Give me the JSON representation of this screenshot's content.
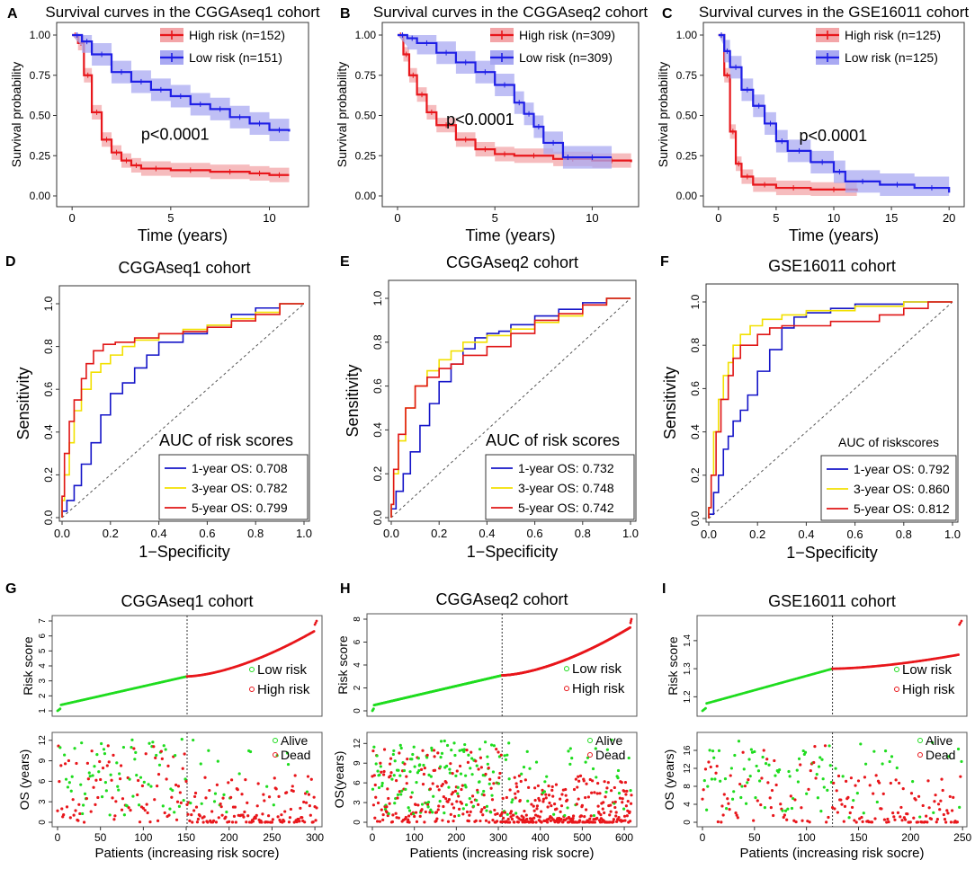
{
  "colors": {
    "high": "#e8161b",
    "low": "#1f1fe6",
    "one": "#1414c8",
    "three": "#f2e000",
    "five": "#e01616",
    "green": "#1fdc1f",
    "red": "#e8161b",
    "diag": "#555555"
  },
  "km": [
    {
      "letter": "A",
      "title": "Survival curves in the CGGAseq1 cohort",
      "xlabel": "Time (years)",
      "ylabel": "Survival probability",
      "pvalue": "p<0.0001",
      "legend": [
        "High risk (n=152)",
        "Low risk (n=151)"
      ],
      "xlim": [
        -0.6,
        11.8
      ],
      "xticks": [
        0,
        5,
        10
      ],
      "ylim": [
        0,
        1
      ],
      "yticks": [
        "0.00",
        "0.25",
        "0.50",
        "0.75",
        "1.00"
      ],
      "high": [
        [
          0,
          1
        ],
        [
          0.3,
          0.95
        ],
        [
          0.6,
          0.75
        ],
        [
          1,
          0.52
        ],
        [
          1.5,
          0.35
        ],
        [
          2,
          0.27
        ],
        [
          2.5,
          0.22
        ],
        [
          3,
          0.19
        ],
        [
          3.5,
          0.17
        ],
        [
          5,
          0.16
        ],
        [
          7,
          0.15
        ],
        [
          9,
          0.14
        ],
        [
          10,
          0.13
        ],
        [
          11,
          0.13
        ]
      ],
      "low": [
        [
          0,
          1
        ],
        [
          0.5,
          0.96
        ],
        [
          1,
          0.88
        ],
        [
          2,
          0.77
        ],
        [
          3,
          0.71
        ],
        [
          4,
          0.66
        ],
        [
          5,
          0.62
        ],
        [
          6,
          0.57
        ],
        [
          7,
          0.54
        ],
        [
          8,
          0.49
        ],
        [
          9,
          0.45
        ],
        [
          10,
          0.41
        ],
        [
          11,
          0.4
        ]
      ]
    },
    {
      "letter": "B",
      "title": "Survival curves in the CGGAseq2 cohort",
      "xlabel": "Time (years)",
      "ylabel": "Survival probability",
      "pvalue": "p<0.0001",
      "legend": [
        "High risk (n=309)",
        "Low risk (n=309)"
      ],
      "xlim": [
        -0.6,
        12.2
      ],
      "xticks": [
        0,
        5,
        10
      ],
      "ylim": [
        0,
        1
      ],
      "yticks": [
        "0.00",
        "0.25",
        "0.50",
        "0.75",
        "1.00"
      ],
      "high": [
        [
          0,
          1
        ],
        [
          0.3,
          0.88
        ],
        [
          0.6,
          0.75
        ],
        [
          1,
          0.63
        ],
        [
          1.5,
          0.52
        ],
        [
          2,
          0.44
        ],
        [
          3,
          0.35
        ],
        [
          4,
          0.29
        ],
        [
          5,
          0.26
        ],
        [
          6,
          0.25
        ],
        [
          8,
          0.23
        ],
        [
          10,
          0.22
        ],
        [
          12,
          0.21
        ]
      ],
      "low": [
        [
          0,
          1
        ],
        [
          0.5,
          0.98
        ],
        [
          1,
          0.95
        ],
        [
          2,
          0.89
        ],
        [
          3,
          0.83
        ],
        [
          4,
          0.77
        ],
        [
          5,
          0.69
        ],
        [
          6,
          0.58
        ],
        [
          6.5,
          0.51
        ],
        [
          7,
          0.43
        ],
        [
          7.5,
          0.33
        ],
        [
          8.5,
          0.24
        ],
        [
          9,
          0.24
        ],
        [
          11,
          0.24
        ]
      ]
    },
    {
      "letter": "C",
      "title": "Survival curves in the GSE16011 cohort",
      "xlabel": "Time (years)",
      "ylabel": "Survival probability",
      "pvalue": "p<0.0001",
      "legend": [
        "High risk (n=125)",
        "Low risk (n=125)"
      ],
      "xlim": [
        -1,
        21
      ],
      "xticks": [
        0,
        5,
        10,
        15,
        20
      ],
      "ylim": [
        0,
        1
      ],
      "yticks": [
        "0.00",
        "0.25",
        "0.50",
        "0.75",
        "1.00"
      ],
      "high": [
        [
          0,
          1
        ],
        [
          0.5,
          0.75
        ],
        [
          1,
          0.4
        ],
        [
          1.5,
          0.2
        ],
        [
          2,
          0.12
        ],
        [
          3,
          0.07
        ],
        [
          5,
          0.05
        ],
        [
          8,
          0.04
        ],
        [
          12,
          0.03
        ]
      ],
      "low": [
        [
          0,
          1
        ],
        [
          0.5,
          0.9
        ],
        [
          1,
          0.8
        ],
        [
          2,
          0.66
        ],
        [
          3,
          0.56
        ],
        [
          4,
          0.45
        ],
        [
          5,
          0.34
        ],
        [
          6,
          0.28
        ],
        [
          8,
          0.21
        ],
        [
          10,
          0.15
        ],
        [
          11,
          0.09
        ],
        [
          14,
          0.07
        ],
        [
          17,
          0.05
        ],
        [
          20,
          0.02
        ]
      ]
    }
  ],
  "roc": [
    {
      "letter": "D",
      "title": "CGGAseq1 cohort",
      "xlabel": "1−Specificity",
      "ylabel": "Sensitivity",
      "legend_title": "AUC of risk scores",
      "legend": [
        "1-year OS:  0.708",
        "3-year OS:  0.782",
        "5-year OS:  0.799"
      ],
      "ticks": [
        "0.0",
        "0.2",
        "0.4",
        "0.6",
        "0.8",
        "1.0"
      ],
      "one": [
        [
          0,
          0
        ],
        [
          0.02,
          0.03
        ],
        [
          0.05,
          0.08
        ],
        [
          0.08,
          0.15
        ],
        [
          0.12,
          0.25
        ],
        [
          0.16,
          0.35
        ],
        [
          0.2,
          0.48
        ],
        [
          0.25,
          0.58
        ],
        [
          0.3,
          0.63
        ],
        [
          0.35,
          0.7
        ],
        [
          0.4,
          0.76
        ],
        [
          0.5,
          0.82
        ],
        [
          0.6,
          0.86
        ],
        [
          0.7,
          0.9
        ],
        [
          0.8,
          0.95
        ],
        [
          0.9,
          0.98
        ],
        [
          1,
          1
        ]
      ],
      "three": [
        [
          0,
          0
        ],
        [
          0.01,
          0.08
        ],
        [
          0.03,
          0.2
        ],
        [
          0.05,
          0.35
        ],
        [
          0.08,
          0.5
        ],
        [
          0.12,
          0.6
        ],
        [
          0.16,
          0.68
        ],
        [
          0.2,
          0.72
        ],
        [
          0.25,
          0.76
        ],
        [
          0.3,
          0.8
        ],
        [
          0.4,
          0.83
        ],
        [
          0.5,
          0.86
        ],
        [
          0.6,
          0.88
        ],
        [
          0.7,
          0.9
        ],
        [
          0.8,
          0.93
        ],
        [
          0.9,
          0.96
        ],
        [
          1,
          1
        ]
      ],
      "five": [
        [
          0,
          0
        ],
        [
          0.01,
          0.1
        ],
        [
          0.03,
          0.3
        ],
        [
          0.05,
          0.45
        ],
        [
          0.08,
          0.55
        ],
        [
          0.1,
          0.65
        ],
        [
          0.13,
          0.72
        ],
        [
          0.17,
          0.78
        ],
        [
          0.22,
          0.81
        ],
        [
          0.3,
          0.82
        ],
        [
          0.4,
          0.84
        ],
        [
          0.5,
          0.86
        ],
        [
          0.6,
          0.87
        ],
        [
          0.7,
          0.89
        ],
        [
          0.8,
          0.92
        ],
        [
          0.9,
          0.95
        ],
        [
          1,
          1
        ]
      ]
    },
    {
      "letter": "E",
      "title": "CGGAseq2 cohort",
      "xlabel": "1−Specificity",
      "ylabel": "Sensitivity",
      "legend_title": "AUC of risk scores",
      "legend": [
        "1-year OS:  0.732",
        "3-year OS:  0.748",
        "5-year OS:  0.742"
      ],
      "ticks": [
        "0.0",
        "0.2",
        "0.4",
        "0.6",
        "0.8",
        "1.0"
      ],
      "one": [
        [
          0,
          0
        ],
        [
          0.02,
          0.04
        ],
        [
          0.05,
          0.12
        ],
        [
          0.08,
          0.2
        ],
        [
          0.12,
          0.3
        ],
        [
          0.16,
          0.42
        ],
        [
          0.2,
          0.52
        ],
        [
          0.25,
          0.62
        ],
        [
          0.3,
          0.7
        ],
        [
          0.35,
          0.77
        ],
        [
          0.4,
          0.82
        ],
        [
          0.45,
          0.84
        ],
        [
          0.5,
          0.85
        ],
        [
          0.6,
          0.88
        ],
        [
          0.7,
          0.92
        ],
        [
          0.8,
          0.95
        ],
        [
          0.9,
          0.98
        ],
        [
          1,
          1
        ]
      ],
      "three": [
        [
          0,
          0
        ],
        [
          0.01,
          0.06
        ],
        [
          0.03,
          0.2
        ],
        [
          0.06,
          0.35
        ],
        [
          0.1,
          0.5
        ],
        [
          0.15,
          0.6
        ],
        [
          0.2,
          0.67
        ],
        [
          0.25,
          0.72
        ],
        [
          0.3,
          0.76
        ],
        [
          0.4,
          0.8
        ],
        [
          0.5,
          0.83
        ],
        [
          0.6,
          0.86
        ],
        [
          0.7,
          0.89
        ],
        [
          0.8,
          0.92
        ],
        [
          0.9,
          0.97
        ],
        [
          1,
          1
        ]
      ],
      "five": [
        [
          0,
          0
        ],
        [
          0.01,
          0.06
        ],
        [
          0.03,
          0.22
        ],
        [
          0.06,
          0.38
        ],
        [
          0.1,
          0.5
        ],
        [
          0.15,
          0.6
        ],
        [
          0.2,
          0.64
        ],
        [
          0.25,
          0.68
        ],
        [
          0.3,
          0.7
        ],
        [
          0.4,
          0.74
        ],
        [
          0.5,
          0.78
        ],
        [
          0.6,
          0.84
        ],
        [
          0.7,
          0.9
        ],
        [
          0.8,
          0.93
        ],
        [
          0.9,
          0.97
        ],
        [
          1,
          1
        ]
      ]
    },
    {
      "letter": "F",
      "title": "GSE16011 cohort",
      "xlabel": "1−Specificity",
      "ylabel": "Sensitivity",
      "legend_title": "AUC of riskscores",
      "legend": [
        "1-year OS:  0.792",
        "3-year OS:  0.860",
        "5-year OS:  0.812"
      ],
      "ticks": [
        "0.0",
        "0.2",
        "0.4",
        "0.6",
        "0.8",
        "1.0"
      ],
      "one": [
        [
          0,
          0
        ],
        [
          0.02,
          0.02
        ],
        [
          0.04,
          0.12
        ],
        [
          0.06,
          0.2
        ],
        [
          0.08,
          0.32
        ],
        [
          0.1,
          0.38
        ],
        [
          0.13,
          0.45
        ],
        [
          0.16,
          0.5
        ],
        [
          0.2,
          0.57
        ],
        [
          0.25,
          0.68
        ],
        [
          0.3,
          0.78
        ],
        [
          0.35,
          0.88
        ],
        [
          0.4,
          0.93
        ],
        [
          0.5,
          0.95
        ],
        [
          0.6,
          0.97
        ],
        [
          0.8,
          0.99
        ],
        [
          1,
          1
        ]
      ],
      "three": [
        [
          0,
          0
        ],
        [
          0.01,
          0.05
        ],
        [
          0.02,
          0.2
        ],
        [
          0.04,
          0.4
        ],
        [
          0.06,
          0.55
        ],
        [
          0.08,
          0.66
        ],
        [
          0.1,
          0.72
        ],
        [
          0.13,
          0.8
        ],
        [
          0.17,
          0.85
        ],
        [
          0.22,
          0.89
        ],
        [
          0.3,
          0.92
        ],
        [
          0.4,
          0.94
        ],
        [
          0.6,
          0.96
        ],
        [
          0.8,
          0.98
        ],
        [
          1,
          1
        ]
      ],
      "five": [
        [
          0,
          0
        ],
        [
          0.01,
          0.05
        ],
        [
          0.03,
          0.2
        ],
        [
          0.05,
          0.4
        ],
        [
          0.08,
          0.55
        ],
        [
          0.1,
          0.66
        ],
        [
          0.13,
          0.74
        ],
        [
          0.17,
          0.8
        ],
        [
          0.2,
          0.8
        ],
        [
          0.25,
          0.85
        ],
        [
          0.3,
          0.88
        ],
        [
          0.5,
          0.89
        ],
        [
          0.7,
          0.91
        ],
        [
          0.8,
          0.94
        ],
        [
          0.9,
          0.97
        ],
        [
          1,
          1
        ]
      ]
    }
  ],
  "risk": [
    {
      "letter": "G",
      "title": "CGGAseq1 cohort",
      "n": 303,
      "cut": 151,
      "ymin": 1,
      "ymax": 7,
      "yticks": [
        "1",
        "2",
        "3",
        "4",
        "5",
        "6",
        "7"
      ],
      "cutval": 3.3,
      "xticks": [
        "0",
        "50",
        "100",
        "150",
        "200",
        "250",
        "300"
      ],
      "ylabel": "Risk score",
      "legend": [
        "Low risk",
        "High risk"
      ],
      "os_ylabel": "OS (years)",
      "os_legend": [
        "Alive",
        "Dead"
      ],
      "os_yticks": [
        "0",
        "3",
        "6",
        "9",
        "12"
      ],
      "os_max": 12.5,
      "xlabel": "Patients (increasing risk socre)"
    },
    {
      "letter": "H",
      "title": "CGGAseq2 cohort",
      "n": 618,
      "cut": 309,
      "ymin": 0,
      "ymax": 8,
      "yticks": [
        "0",
        "2",
        "4",
        "6",
        "8"
      ],
      "cutval": 3.1,
      "xticks": [
        "0",
        "100",
        "200",
        "300",
        "400",
        "500",
        "600"
      ],
      "ylabel": "Risk score",
      "legend": [
        "Low risk",
        "High risk"
      ],
      "os_ylabel": "OS(years)",
      "os_legend": [
        "Alive",
        "Dead"
      ],
      "os_yticks": [
        "0",
        "3",
        "6",
        "9",
        "12"
      ],
      "os_max": 13,
      "xlabel": "Patients (increasing risk socre)"
    },
    {
      "letter": "I",
      "title": "GSE16011 cohort",
      "n": 250,
      "cut": 125,
      "ymin": 1.15,
      "ymax": 1.47,
      "yticks": [
        "1.2",
        "1.3",
        "1.4"
      ],
      "cutval": 1.3,
      "xticks": [
        "0",
        "50",
        "100",
        "150",
        "200",
        "250"
      ],
      "ylabel": "Risk score",
      "legend": [
        "Low risk",
        "High risk"
      ],
      "os_ylabel": "OS (years)",
      "os_legend": [
        "Alive",
        "Dead"
      ],
      "os_yticks": [
        "0",
        "4",
        "8",
        "12",
        "16"
      ],
      "os_max": 19,
      "xlabel": "Patients (increasing risk socre)"
    }
  ]
}
